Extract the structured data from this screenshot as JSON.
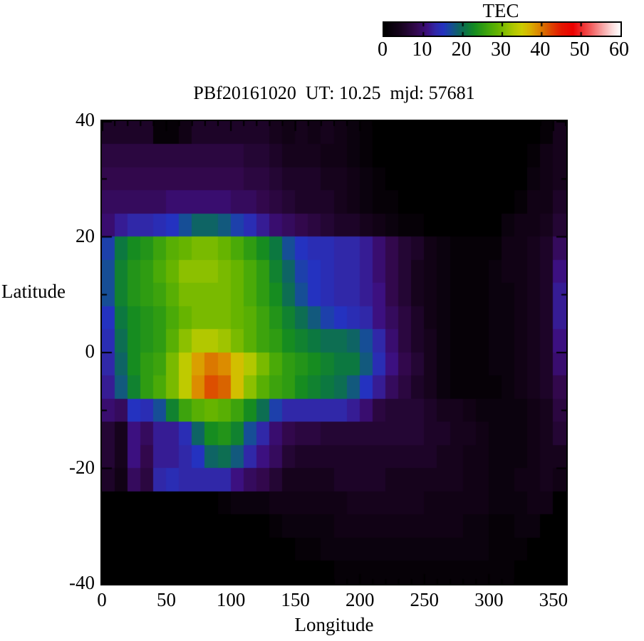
{
  "title": "PBf20161020  UT: 10.25  mjd: 57681",
  "colorbar": {
    "title": "TEC",
    "min": 0,
    "max": 60,
    "tick_labels": [
      0,
      10,
      20,
      30,
      40,
      50,
      60
    ],
    "bar_ticks": [
      10,
      20,
      30,
      40,
      50
    ],
    "gradient_stops": [
      [
        0,
        "#000000"
      ],
      [
        4,
        "#16031c"
      ],
      [
        8,
        "#32084c"
      ],
      [
        11,
        "#3c1080"
      ],
      [
        13,
        "#3028a8"
      ],
      [
        15,
        "#2432c0"
      ],
      [
        17,
        "#164e96"
      ],
      [
        19,
        "#0e6464"
      ],
      [
        21,
        "#0c7840"
      ],
      [
        23,
        "#168c20"
      ],
      [
        25,
        "#2f9c12"
      ],
      [
        27,
        "#4aaa08"
      ],
      [
        29,
        "#66b400"
      ],
      [
        31,
        "#8cc000"
      ],
      [
        33,
        "#b2c800"
      ],
      [
        35,
        "#cccc00"
      ],
      [
        37,
        "#d8b200"
      ],
      [
        39,
        "#dc8c00"
      ],
      [
        41,
        "#d96400"
      ],
      [
        43,
        "#e03a00"
      ],
      [
        45,
        "#e41800"
      ],
      [
        48,
        "#ec0000"
      ],
      [
        52,
        "#f25050"
      ],
      [
        55,
        "#f79898"
      ],
      [
        58,
        "#fddcdc"
      ],
      [
        60,
        "#ffffff"
      ]
    ]
  },
  "axes": {
    "x": {
      "label": "Longitude",
      "min": 0,
      "max": 360,
      "major_ticks": [
        0,
        50,
        100,
        150,
        200,
        250,
        300,
        350
      ],
      "minor_step": 10
    },
    "y": {
      "label": "Latitude",
      "min": -40,
      "max": 40,
      "major_ticks": [
        40,
        20,
        0,
        -20,
        -40
      ],
      "minor_step": 10
    }
  },
  "chart_data": {
    "type": "heatmap",
    "title": "PBf20161020  UT: 10.25  mjd: 57681",
    "xlabel": "Longitude",
    "ylabel": "Latitude",
    "value_name": "TEC",
    "value_range": [
      0,
      60
    ],
    "lon_range": [
      0,
      360
    ],
    "lat_range": [
      -40,
      40
    ],
    "grid_cols": 36,
    "grid_rows": 20,
    "row_lat_centers": [
      38,
      34,
      30,
      26,
      22,
      18,
      14,
      10,
      6,
      2,
      -2,
      -6,
      -10,
      -14,
      -18,
      -22,
      -26,
      -30,
      -34,
      -38
    ],
    "col_lon_centers": [
      5,
      15,
      25,
      35,
      45,
      55,
      65,
      75,
      85,
      95,
      105,
      115,
      125,
      135,
      145,
      155,
      165,
      175,
      185,
      195,
      205,
      215,
      225,
      235,
      245,
      255,
      265,
      275,
      285,
      295,
      305,
      315,
      325,
      335,
      345,
      355
    ],
    "values": [
      [
        5,
        5,
        5,
        5,
        1,
        1,
        3,
        5,
        5,
        5,
        5,
        5,
        5,
        4,
        3,
        4,
        3,
        4,
        3,
        2,
        1,
        0,
        0,
        0,
        0,
        0,
        0,
        0,
        0,
        0,
        0,
        0,
        0,
        0,
        1,
        4
      ],
      [
        7,
        7,
        7,
        7,
        7,
        7,
        7,
        7,
        7,
        7,
        7,
        6,
        6,
        5,
        4,
        4,
        4,
        3,
        3,
        2,
        1,
        0,
        0,
        0,
        0,
        0,
        0,
        0,
        0,
        0,
        0,
        0,
        0,
        1,
        3,
        4
      ],
      [
        8,
        8,
        8,
        8,
        8,
        8,
        8,
        8,
        8,
        8,
        8,
        7,
        7,
        6,
        5,
        5,
        5,
        4,
        4,
        3,
        2,
        1,
        0,
        0,
        0,
        0,
        0,
        0,
        0,
        0,
        0,
        0,
        0,
        2,
        3,
        4
      ],
      [
        9,
        9,
        9,
        9,
        9,
        10,
        10,
        10,
        10,
        10,
        9,
        9,
        8,
        7,
        6,
        5,
        5,
        5,
        4,
        3,
        2,
        1,
        1,
        0,
        0,
        0,
        0,
        0,
        0,
        0,
        0,
        0,
        1,
        3,
        3,
        5
      ],
      [
        10,
        12,
        13,
        13,
        14,
        15,
        17,
        19,
        19,
        18,
        16,
        14,
        12,
        10,
        9,
        8,
        7,
        6,
        5,
        5,
        4,
        3,
        2,
        1,
        1,
        0,
        0,
        0,
        0,
        0,
        0,
        2,
        3,
        3,
        4,
        6
      ],
      [
        16,
        21,
        23,
        24,
        26,
        28,
        29,
        30,
        30,
        29,
        27,
        25,
        23,
        21,
        17,
        15,
        14,
        14,
        13,
        13,
        12,
        10,
        8,
        6,
        5,
        3,
        2,
        1,
        1,
        1,
        1,
        3,
        3,
        4,
        5,
        9
      ],
      [
        17,
        22,
        24,
        25,
        27,
        29,
        31,
        31,
        31,
        30,
        29,
        27,
        25,
        22,
        19,
        16,
        15,
        14,
        13,
        13,
        12,
        10,
        8,
        6,
        4,
        3,
        2,
        1,
        1,
        1,
        2,
        3,
        3,
        4,
        5,
        11
      ],
      [
        17,
        22,
        24,
        25,
        26,
        28,
        30,
        30,
        30,
        30,
        29,
        27,
        25,
        23,
        20,
        17,
        15,
        14,
        13,
        13,
        12,
        11,
        8,
        6,
        4,
        3,
        2,
        1,
        1,
        1,
        2,
        2,
        3,
        4,
        5,
        12
      ],
      [
        15,
        21,
        23,
        24,
        25,
        27,
        29,
        30,
        30,
        30,
        29,
        28,
        26,
        24,
        22,
        20,
        18,
        16,
        15,
        14,
        13,
        11,
        9,
        7,
        5,
        3,
        2,
        1,
        1,
        1,
        2,
        2,
        3,
        4,
        5,
        12
      ],
      [
        14,
        20,
        23,
        24,
        25,
        28,
        31,
        33,
        33,
        32,
        30,
        28,
        26,
        25,
        23,
        22,
        21,
        20,
        20,
        19,
        17,
        13,
        10,
        7,
        5,
        4,
        2,
        1,
        1,
        1,
        2,
        2,
        3,
        4,
        5,
        11
      ],
      [
        13,
        19,
        23,
        25,
        26,
        30,
        34,
        38,
        40,
        39,
        36,
        33,
        30,
        27,
        25,
        24,
        23,
        22,
        21,
        21,
        18,
        14,
        11,
        8,
        6,
        4,
        2,
        1,
        1,
        1,
        2,
        2,
        3,
        4,
        5,
        10
      ],
      [
        12,
        18,
        22,
        25,
        27,
        30,
        34,
        39,
        42,
        41,
        36,
        31,
        28,
        26,
        25,
        23,
        22,
        21,
        20,
        18,
        15,
        12,
        9,
        7,
        5,
        4,
        2,
        1,
        1,
        1,
        1,
        2,
        3,
        4,
        5,
        8
      ],
      [
        10,
        9,
        15,
        14,
        17,
        22,
        26,
        28,
        29,
        28,
        26,
        23,
        20,
        16,
        13,
        13,
        13,
        13,
        13,
        12,
        10,
        7,
        6,
        6,
        6,
        5,
        4,
        4,
        3,
        2,
        2,
        2,
        2,
        3,
        4,
        7
      ],
      [
        6,
        4,
        11,
        9,
        12,
        12,
        14,
        19,
        23,
        24,
        22,
        17,
        13,
        10,
        8,
        7,
        7,
        6,
        6,
        6,
        6,
        6,
        6,
        6,
        6,
        5,
        5,
        4,
        4,
        3,
        2,
        2,
        2,
        3,
        4,
        6
      ],
      [
        6,
        4,
        11,
        8,
        12,
        12,
        13,
        15,
        19,
        20,
        18,
        13,
        11,
        9,
        6,
        5,
        5,
        5,
        5,
        5,
        5,
        5,
        5,
        5,
        5,
        5,
        4,
        4,
        3,
        3,
        2,
        2,
        2,
        3,
        4,
        4
      ],
      [
        5,
        3,
        9,
        7,
        13,
        14,
        13,
        13,
        13,
        13,
        11,
        9,
        8,
        6,
        4,
        4,
        4,
        4,
        5,
        5,
        5,
        5,
        4,
        4,
        4,
        4,
        4,
        4,
        3,
        3,
        2,
        2,
        3,
        3,
        4,
        3
      ],
      [
        0,
        0,
        0,
        0,
        0,
        0,
        0,
        0,
        0,
        1,
        2,
        2,
        2,
        3,
        3,
        3,
        3,
        3,
        3,
        4,
        4,
        4,
        4,
        4,
        4,
        3,
        3,
        3,
        3,
        3,
        2,
        2,
        2,
        3,
        3,
        0
      ],
      [
        0,
        0,
        0,
        0,
        0,
        0,
        0,
        0,
        0,
        0,
        0,
        0,
        0,
        1,
        2,
        2,
        2,
        2,
        3,
        3,
        3,
        3,
        3,
        3,
        3,
        3,
        3,
        3,
        2,
        2,
        1,
        1,
        2,
        2,
        0,
        0
      ],
      [
        0,
        0,
        0,
        0,
        0,
        0,
        0,
        0,
        0,
        0,
        0,
        0,
        0,
        0,
        0,
        1,
        1,
        2,
        2,
        2,
        2,
        2,
        2,
        2,
        2,
        2,
        2,
        2,
        2,
        2,
        1,
        1,
        1,
        0,
        0,
        0
      ],
      [
        0,
        0,
        0,
        0,
        0,
        0,
        0,
        0,
        0,
        0,
        0,
        0,
        0,
        0,
        0,
        0,
        0,
        0,
        1,
        1,
        1,
        1,
        1,
        1,
        1,
        1,
        1,
        1,
        1,
        1,
        1,
        1,
        0,
        0,
        0,
        0
      ]
    ]
  }
}
